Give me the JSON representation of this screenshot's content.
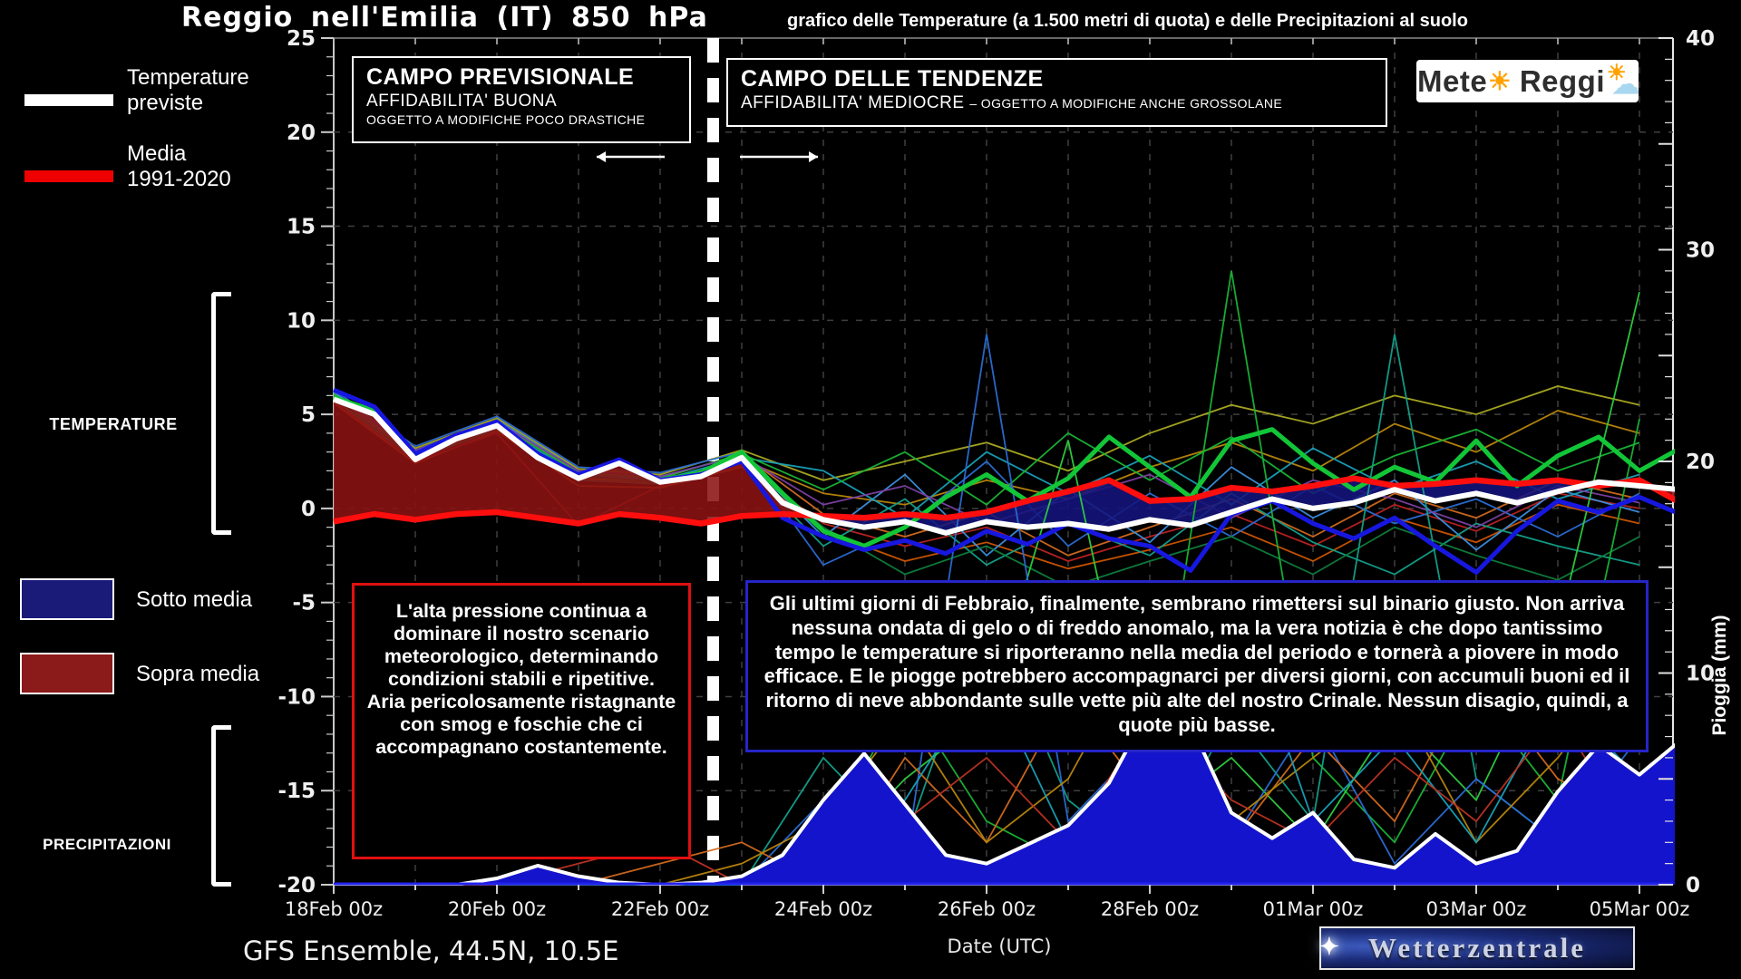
{
  "header": {
    "title": "Reggio nell'Emilia (IT) 850 hPa",
    "subtitle": "grafico delle Temperature  (a 1.500 metri di quota) e delle Precipitazioni al suolo"
  },
  "legend": {
    "temperature": "Temperature previste",
    "media": "Media 1991-2020",
    "sotto": "Sotto media",
    "sopra": "Sopra media",
    "temperature_section": "TEMPERATURE",
    "precipitazioni_section": "PRECIPITAZIONI"
  },
  "annotations": {
    "previsionale": {
      "title": "CAMPO PREVISIONALE",
      "line2": "AFFIDABILITA' BUONA",
      "line3": "OGGETTO A MODIFICHE POCO DRASTICHE"
    },
    "tendenze": {
      "title": "CAMPO DELLE TENDENZE",
      "line2a": "AFFIDABILITA' MEDIOCRE",
      "line2b": "– OGGETTO A MODIFICHE ANCHE GROSSOLANE"
    },
    "red_box_line1": "L'alta pressione continua a dominare il nostro scenario meteorologico, determinando condizioni stabili e ripetitive.",
    "red_box_line2": "Aria pericolosamente ristagnante con smog e foschie che ci accompagnano costantemente.",
    "blue_box_text": "Gli ultimi giorni di Febbraio, finalmente, sembrano rimettersi sul binario giusto. Non arriva nessuna ondata di gelo o di freddo anomalo, ma la vera notizia è che dopo tantissimo tempo le temperature si riporteranno nella media del periodo e tornerà a piovere in modo efficace. E le piogge potrebbero accompagnarci per diversi giorni, con accumuli buoni ed il ritorno di neve abbondante sulle vette più alte del nostro Crinale. Nessun disagio, quindi, a quote più basse."
  },
  "logos": {
    "meteo_reggio_part1": "Mete",
    "meteo_reggio_part2": "Reggi",
    "wetterzentrale": "Wetterzentrale",
    "spark": "✦"
  },
  "footer": {
    "model": "GFS Ensemble, 44.5N, 10.5E",
    "xlabel": "Date (UTC)"
  },
  "chart_data": {
    "type": "line",
    "title": "Reggio nell'Emilia (IT) 850 hPa — GFS Ensemble meteogram",
    "x_ticks": [
      "18Feb 00z",
      "20Feb 00z",
      "22Feb 00z",
      "24Feb 00z",
      "26Feb 00z",
      "28Feb 00z",
      "01Mar 00z",
      "03Mar 00z",
      "05Mar 00z"
    ],
    "x_tick_days": [
      0,
      2,
      4,
      6,
      8,
      10,
      12,
      14,
      16
    ],
    "x_range_days": [
      0,
      16.4
    ],
    "temp_axis": {
      "range_c": [
        -20,
        25
      ],
      "ticks": [
        25,
        20,
        15,
        10,
        5,
        0,
        -5,
        -10,
        -15,
        -20
      ]
    },
    "rain_axis": {
      "range_mm": [
        0,
        40
      ],
      "ticks": [
        40,
        30,
        20,
        10,
        0
      ],
      "label": "Pioggia (mm)"
    },
    "divider_day": 4.65,
    "step_days": 0.5,
    "colors": {
      "background": "#000000",
      "grid": "#3f3f3f",
      "axis": "#c8c8c8",
      "white_line": "#ffffff",
      "media_line": "#ff0e0e",
      "blue_run": "#1717e0",
      "green_run": "#12c637",
      "sopra_fill": "#8b1212",
      "sotto_fill": "#15157d",
      "rain_fill": "#1414cc",
      "rain_outline": "#ffffff"
    },
    "series": {
      "white_mean": [
        5.8,
        5.0,
        2.6,
        3.7,
        4.4,
        2.7,
        1.6,
        2.4,
        1.4,
        1.7,
        2.7,
        0.3,
        -0.6,
        -1.0,
        -0.7,
        -1.3,
        -0.7,
        -1.0,
        -0.8,
        -1.1,
        -0.6,
        -0.9,
        -0.2,
        0.5,
        0.0,
        0.3,
        1.0,
        0.4,
        0.8,
        0.3,
        0.9,
        1.4,
        1.2,
        1.0
      ],
      "media_1991_2020": [
        -0.7,
        -0.3,
        -0.6,
        -0.3,
        -0.2,
        -0.5,
        -0.8,
        -0.3,
        -0.5,
        -0.8,
        -0.4,
        -0.3,
        -0.4,
        -0.5,
        -0.3,
        -0.5,
        -0.2,
        0.4,
        0.9,
        1.5,
        0.4,
        0.5,
        1.1,
        0.9,
        1.2,
        1.6,
        1.2,
        1.3,
        1.5,
        1.3,
        1.5,
        1.2,
        1.5,
        0.3
      ],
      "blue_run": [
        6.3,
        5.4,
        2.9,
        3.9,
        4.6,
        2.9,
        1.8,
        2.6,
        1.5,
        1.8,
        2.5,
        -0.5,
        -1.5,
        -2.2,
        -1.7,
        -2.4,
        -1.2,
        -1.9,
        -0.8,
        -1.6,
        -2.0,
        -3.3,
        -0.3,
        0.4,
        -0.8,
        -1.6,
        -0.5,
        -2.0,
        -3.4,
        -1.2,
        0.4,
        -0.2,
        0.6,
        -0.3
      ],
      "green_run": [
        5.9,
        5.2,
        2.7,
        3.8,
        4.5,
        2.8,
        1.7,
        2.5,
        1.5,
        1.9,
        3.0,
        0.8,
        -1.2,
        -2.0,
        -1.0,
        0.6,
        1.8,
        0.4,
        1.6,
        3.8,
        2.2,
        0.6,
        3.6,
        4.2,
        2.4,
        1.0,
        2.2,
        1.4,
        3.6,
        1.2,
        2.8,
        3.8,
        2.0,
        3.2
      ],
      "rain_mean_mm": [
        0,
        0,
        0,
        0,
        0.3,
        0.9,
        0.4,
        0.1,
        0,
        0.1,
        0.4,
        1.4,
        4.0,
        6.2,
        3.8,
        1.4,
        1.0,
        1.9,
        2.8,
        4.8,
        8.4,
        7.6,
        3.4,
        2.2,
        3.4,
        1.2,
        0.8,
        2.4,
        1.0,
        1.6,
        4.4,
        6.6,
        5.2,
        6.8
      ]
    },
    "members_step_days": 1,
    "temp_members": [
      {
        "c": "#d2691e",
        "v": [
          6.1,
          3.0,
          4.6,
          1.9,
          1.6,
          2.9,
          -0.3,
          -1.5,
          -0.2,
          -2.5,
          -1.0,
          0.5,
          -1.5,
          0.8,
          -0.5,
          1.5,
          0.5
        ]
      },
      {
        "c": "#cc5500",
        "v": [
          5.6,
          2.4,
          4.1,
          1.2,
          1.1,
          2.2,
          -1.2,
          -2.8,
          -1.8,
          -3.2,
          -2.2,
          -1.0,
          -2.8,
          -0.5,
          -1.8,
          0.2,
          -0.8
        ]
      },
      {
        "c": "#b8860b",
        "v": [
          5.9,
          2.8,
          4.3,
          1.6,
          1.4,
          2.6,
          0.8,
          0.2,
          1.5,
          0.5,
          2.2,
          3.5,
          2.0,
          4.5,
          3.0,
          5.2,
          4.0
        ]
      },
      {
        "c": "#aaaa22",
        "v": [
          6.0,
          3.2,
          4.8,
          2.1,
          1.8,
          3.1,
          1.5,
          2.5,
          3.5,
          2.0,
          4.0,
          5.5,
          4.5,
          6.0,
          5.0,
          6.5,
          5.5
        ]
      },
      {
        "c": "#bb2222",
        "v": [
          5.7,
          2.5,
          4.0,
          -0.9,
          1.2,
          2.3,
          -0.8,
          -2.0,
          -1.0,
          -2.8,
          -1.5,
          -0.3,
          -2.0,
          0.2,
          -1.2,
          0.8,
          0.0
        ]
      },
      {
        "c": "#2b6cd4",
        "v": [
          6.3,
          3.3,
          4.9,
          2.2,
          1.9,
          3.0,
          -3.0,
          -1.0,
          2.5,
          -2.0,
          0.8,
          -1.5,
          1.2,
          -0.8,
          0.5,
          -1.5,
          0.8
        ]
      },
      {
        "c": "#3b8edd",
        "v": [
          6.2,
          3.1,
          4.7,
          2.0,
          1.7,
          2.8,
          -1.5,
          1.8,
          -2.5,
          1.0,
          -1.8,
          2.2,
          -0.5,
          1.5,
          -2.2,
          1.0,
          -0.2
        ]
      },
      {
        "c": "#18a0b8",
        "v": [
          6.0,
          2.9,
          4.4,
          1.8,
          1.5,
          2.7,
          2.0,
          -0.5,
          3.0,
          0.8,
          2.8,
          0.2,
          3.2,
          1.0,
          2.5,
          0.5,
          1.8
        ]
      },
      {
        "c": "#12a08a",
        "v": [
          5.8,
          2.6,
          4.2,
          1.5,
          1.3,
          2.4,
          -2.0,
          0.5,
          -3.0,
          -0.8,
          -2.5,
          0.8,
          -1.8,
          -3.5,
          -0.8,
          -2.0,
          -3.0
        ]
      },
      {
        "c": "#19b335",
        "v": [
          6.1,
          3.0,
          4.5,
          1.9,
          1.6,
          2.9,
          1.0,
          3.0,
          0.2,
          4.0,
          1.5,
          3.8,
          0.8,
          2.8,
          4.2,
          2.0,
          3.5
        ]
      },
      {
        "c": "#0e7d3c",
        "v": [
          5.9,
          2.7,
          4.3,
          1.7,
          1.4,
          2.5,
          -1.0,
          -3.5,
          -2.0,
          -4.2,
          -2.8,
          -1.5,
          -3.5,
          -1.0,
          -2.5,
          -3.8,
          -1.5
        ]
      },
      {
        "c": "#7a3fa0",
        "v": [
          6.0,
          3.1,
          4.6,
          2.0,
          1.7,
          2.8,
          0.2,
          1.2,
          -0.8,
          0.5,
          1.8,
          -0.5,
          1.5,
          0.5,
          -1.0,
          1.2,
          0.3
        ]
      }
    ],
    "rain_members": [
      {
        "c": "#19b335",
        "v": [
          0,
          0,
          0,
          0,
          0,
          0,
          2,
          9,
          3,
          1,
          4,
          29,
          6,
          2,
          9,
          4,
          22
        ]
      },
      {
        "c": "#12a08a",
        "v": [
          0,
          0,
          0,
          0,
          0,
          0,
          6,
          2,
          13,
          4,
          1,
          8,
          3,
          26,
          5,
          2,
          9
        ]
      },
      {
        "c": "#2ecc40",
        "v": [
          0,
          0,
          0,
          0,
          0,
          0,
          1,
          5,
          8,
          21,
          3,
          6,
          2,
          8,
          4,
          12,
          28
        ]
      },
      {
        "c": "#2b6cd4",
        "v": [
          0,
          0,
          0,
          0,
          0,
          0,
          4,
          1,
          26,
          3,
          7,
          2,
          8,
          1,
          5,
          2,
          7
        ]
      },
      {
        "c": "#d2691e",
        "v": [
          0,
          0,
          0,
          0,
          1,
          2,
          0,
          6,
          2,
          9,
          4,
          2,
          7,
          3,
          10,
          5,
          3
        ]
      },
      {
        "c": "#b8860b",
        "v": [
          0,
          0,
          0,
          0,
          0,
          1,
          3,
          8,
          2,
          5,
          12,
          3,
          6,
          9,
          2,
          6,
          11
        ]
      },
      {
        "c": "#18a0b8",
        "v": [
          0,
          0,
          0,
          0,
          0,
          0,
          2,
          4,
          10,
          2,
          6,
          14,
          3,
          7,
          2,
          9,
          5
        ]
      },
      {
        "c": "#bb3322",
        "v": [
          0,
          0,
          0,
          1,
          2,
          0,
          1,
          3,
          6,
          2,
          8,
          4,
          2,
          6,
          3,
          8,
          2
        ]
      }
    ]
  }
}
